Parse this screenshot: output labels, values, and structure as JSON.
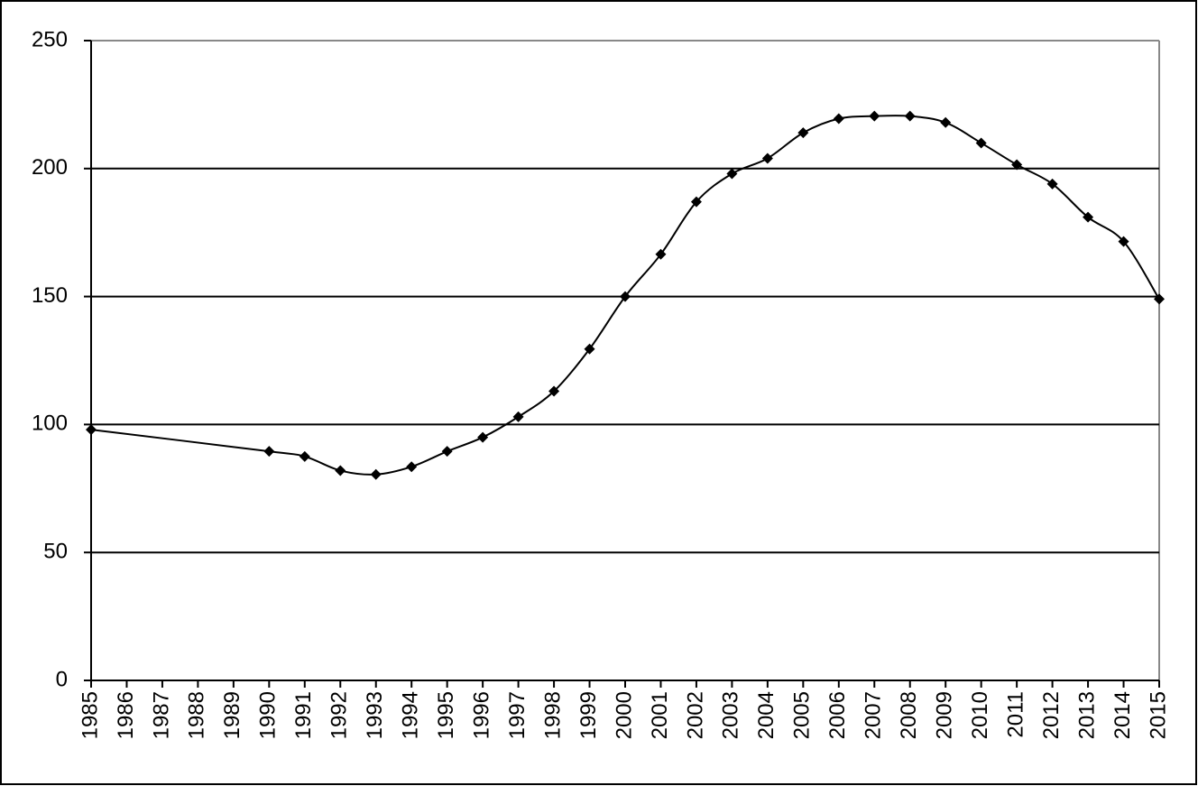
{
  "chart_data": {
    "type": "line",
    "x": [
      1985,
      1990,
      1991,
      1992,
      1993,
      1994,
      1995,
      1996,
      1997,
      1998,
      1999,
      2000,
      2001,
      2002,
      2003,
      2004,
      2005,
      2006,
      2007,
      2008,
      2009,
      2010,
      2011,
      2012,
      2013,
      2014,
      2015
    ],
    "series": [
      {
        "color": "#000000",
        "values": [
          98,
          89.5,
          87.5,
          82,
          80.5,
          83.5,
          89.5,
          95,
          103,
          113,
          129.5,
          150,
          166.5,
          187,
          198,
          204,
          214,
          219.5,
          220.5,
          220.5,
          218,
          210,
          201.5,
          194,
          181,
          171.5,
          149
        ]
      }
    ],
    "xlim": [
      1985,
      2015
    ],
    "xticks": [
      1985,
      1986,
      1987,
      1988,
      1989,
      1990,
      1991,
      1992,
      1993,
      1994,
      1995,
      1996,
      1997,
      1998,
      1999,
      2000,
      2001,
      2002,
      2003,
      2004,
      2005,
      2006,
      2007,
      2008,
      2009,
      2010,
      2011,
      2012,
      2013,
      2014,
      2015
    ],
    "ylim": [
      0,
      250
    ],
    "yticks": [
      0,
      50,
      100,
      150,
      200,
      250
    ],
    "grid": true
  }
}
